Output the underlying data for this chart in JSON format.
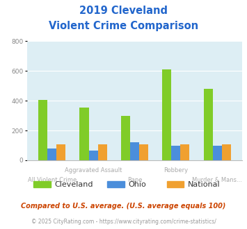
{
  "title_line1": "2019 Cleveland",
  "title_line2": "Violent Crime Comparison",
  "categories": [
    "All Violent Crime",
    "Aggravated Assault",
    "Rape",
    "Robbery",
    "Murder & Mans..."
  ],
  "cat_row1": [
    "",
    "Aggravated Assault",
    "",
    "Robbery",
    ""
  ],
  "cat_row2": [
    "All Violent Crime",
    "",
    "Rape",
    "",
    "Murder & Mans..."
  ],
  "cleveland_values": [
    405,
    355,
    300,
    610,
    480
  ],
  "ohio_values": [
    80,
    65,
    122,
    100,
    100
  ],
  "national_values": [
    105,
    105,
    107,
    107,
    107
  ],
  "cleveland_color": "#80cc28",
  "ohio_color": "#4b8edb",
  "national_color": "#f0a030",
  "ylim": [
    0,
    800
  ],
  "yticks": [
    0,
    200,
    400,
    600,
    800
  ],
  "plot_bg_color": "#ddeef4",
  "title_color": "#2266cc",
  "footer_text1": "Compared to U.S. average. (U.S. average equals 100)",
  "footer_text2": "© 2025 CityRating.com - https://www.cityrating.com/crime-statistics/",
  "footer_color1": "#cc4400",
  "footer_color2": "#999999",
  "xlabel_color": "#aaaaaa",
  "legend_labels": [
    "Cleveland",
    "Ohio",
    "National"
  ],
  "bar_width": 0.22
}
